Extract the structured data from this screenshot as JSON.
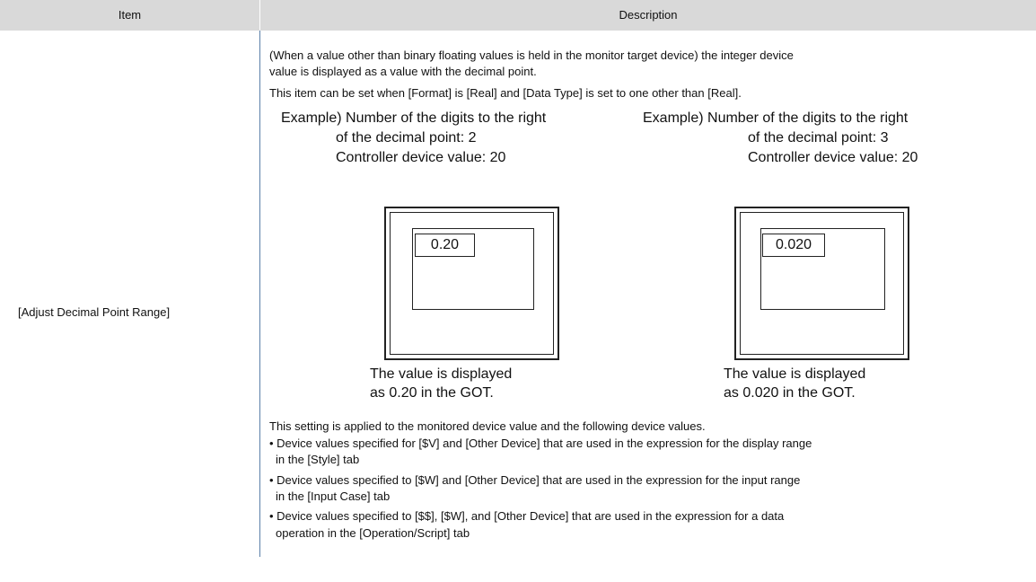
{
  "header": {
    "columns": [
      "Item",
      "Description"
    ]
  },
  "rows": [
    {
      "item": "[Adjust Decimal Point Range]",
      "intro": [
        "(When a value other than binary floating values is held in the monitor target device) the integer device",
        "value is displayed as a value with the decimal point.",
        "This item can be set when [Format] is [Real] and [Data Type] is set to one other than [Real]."
      ],
      "examples": [
        {
          "lines": [
            "Example) Number of the digits to the right",
            "of the decimal point: 2",
            "Controller device value: 20"
          ],
          "screen_value": "0.20",
          "caption": [
            "The value is displayed",
            "as 0.20 in the GOT."
          ]
        },
        {
          "lines": [
            "Example) Number of the digits to the right",
            "of the decimal point: 3",
            "Controller device value: 20"
          ],
          "screen_value": "0.020",
          "caption": [
            "The value is displayed",
            "as 0.020 in the GOT."
          ]
        }
      ],
      "note": "This setting is applied to the monitored device value and the following device values.",
      "bullets": [
        [
          "• Device values specified for [$V] and [Other Device] that are used in the expression for the display range",
          "in the [Style] tab"
        ],
        [
          "• Device values specified to [$W] and [Other Device] that are used in the expression for the input range",
          "in the [Input Case] tab"
        ],
        [
          "• Device values specified to [$$], [$W], and [Other Device] that are used in the expression for a data",
          "operation in the [Operation/Script] tab"
        ]
      ]
    }
  ]
}
